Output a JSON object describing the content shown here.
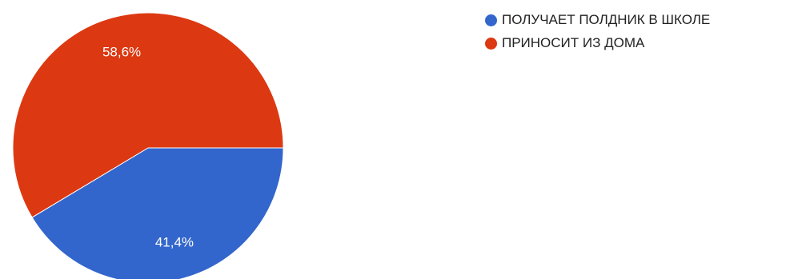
{
  "chart_data": {
    "type": "pie",
    "title": "",
    "legend_position": "right",
    "slices": [
      {
        "label": "ПОЛУЧАЕТ ПОЛДНИК В ШКОЛЕ",
        "value": 41.4,
        "display": "41,4%",
        "color": "#3366cc"
      },
      {
        "label": "ПРИНОСИТ ИЗ ДОМА",
        "value": 58.6,
        "display": "58,6%",
        "color": "#dc3912"
      }
    ]
  }
}
